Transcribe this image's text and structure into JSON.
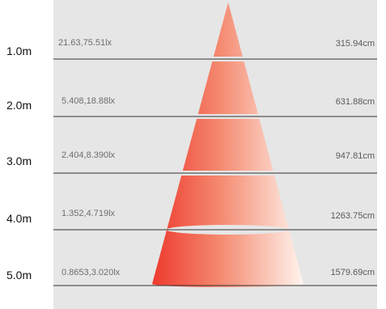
{
  "colors": {
    "background": "#ffffff",
    "panel": "#e6e6e6",
    "divider": "#333333",
    "beam_dark": "#ee3a2e",
    "beam_light": "#fff4ee"
  },
  "rows": [
    {
      "distance": "1.0m",
      "illuminance": "21.63,75.51lx",
      "diameter": "315.94cm"
    },
    {
      "distance": "2.0m",
      "illuminance": "5.408,18.88lx",
      "diameter": "631.88cm"
    },
    {
      "distance": "3.0m",
      "illuminance": "2.404,8.390lx",
      "diameter": "947.81cm"
    },
    {
      "distance": "4.0m",
      "illuminance": "1.352,4.719lx",
      "diameter": "1263.75cm"
    },
    {
      "distance": "5.0m",
      "illuminance": "0.8653,3.020lx",
      "diameter": "1579.69cm"
    }
  ]
}
